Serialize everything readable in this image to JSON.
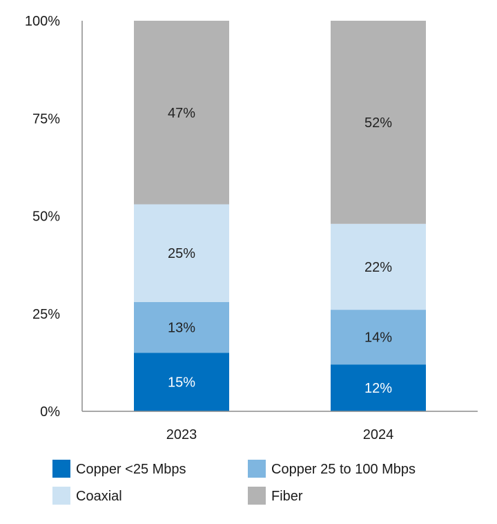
{
  "chart_data": {
    "type": "bar",
    "stacked": true,
    "normalized": true,
    "categories": [
      "2023",
      "2024"
    ],
    "series": [
      {
        "name": "Copper <25 Mbps",
        "values": [
          15,
          12
        ],
        "color": "#0070C0",
        "label_color": "#ffffff"
      },
      {
        "name": "Copper 25 to 100 Mbps",
        "values": [
          13,
          14
        ],
        "color": "#7FB6E0",
        "label_color": "#222222"
      },
      {
        "name": "Coaxial",
        "values": [
          25,
          22
        ],
        "color": "#CCE2F3",
        "label_color": "#222222"
      },
      {
        "name": "Fiber",
        "values": [
          47,
          52
        ],
        "color": "#B3B3B3",
        "label_color": "#222222"
      }
    ],
    "y_ticks": [
      "0%",
      "25%",
      "50%",
      "75%",
      "100%"
    ],
    "ylim": [
      0,
      100
    ],
    "value_suffix": "%",
    "grid": false,
    "legend_position": "bottom"
  }
}
